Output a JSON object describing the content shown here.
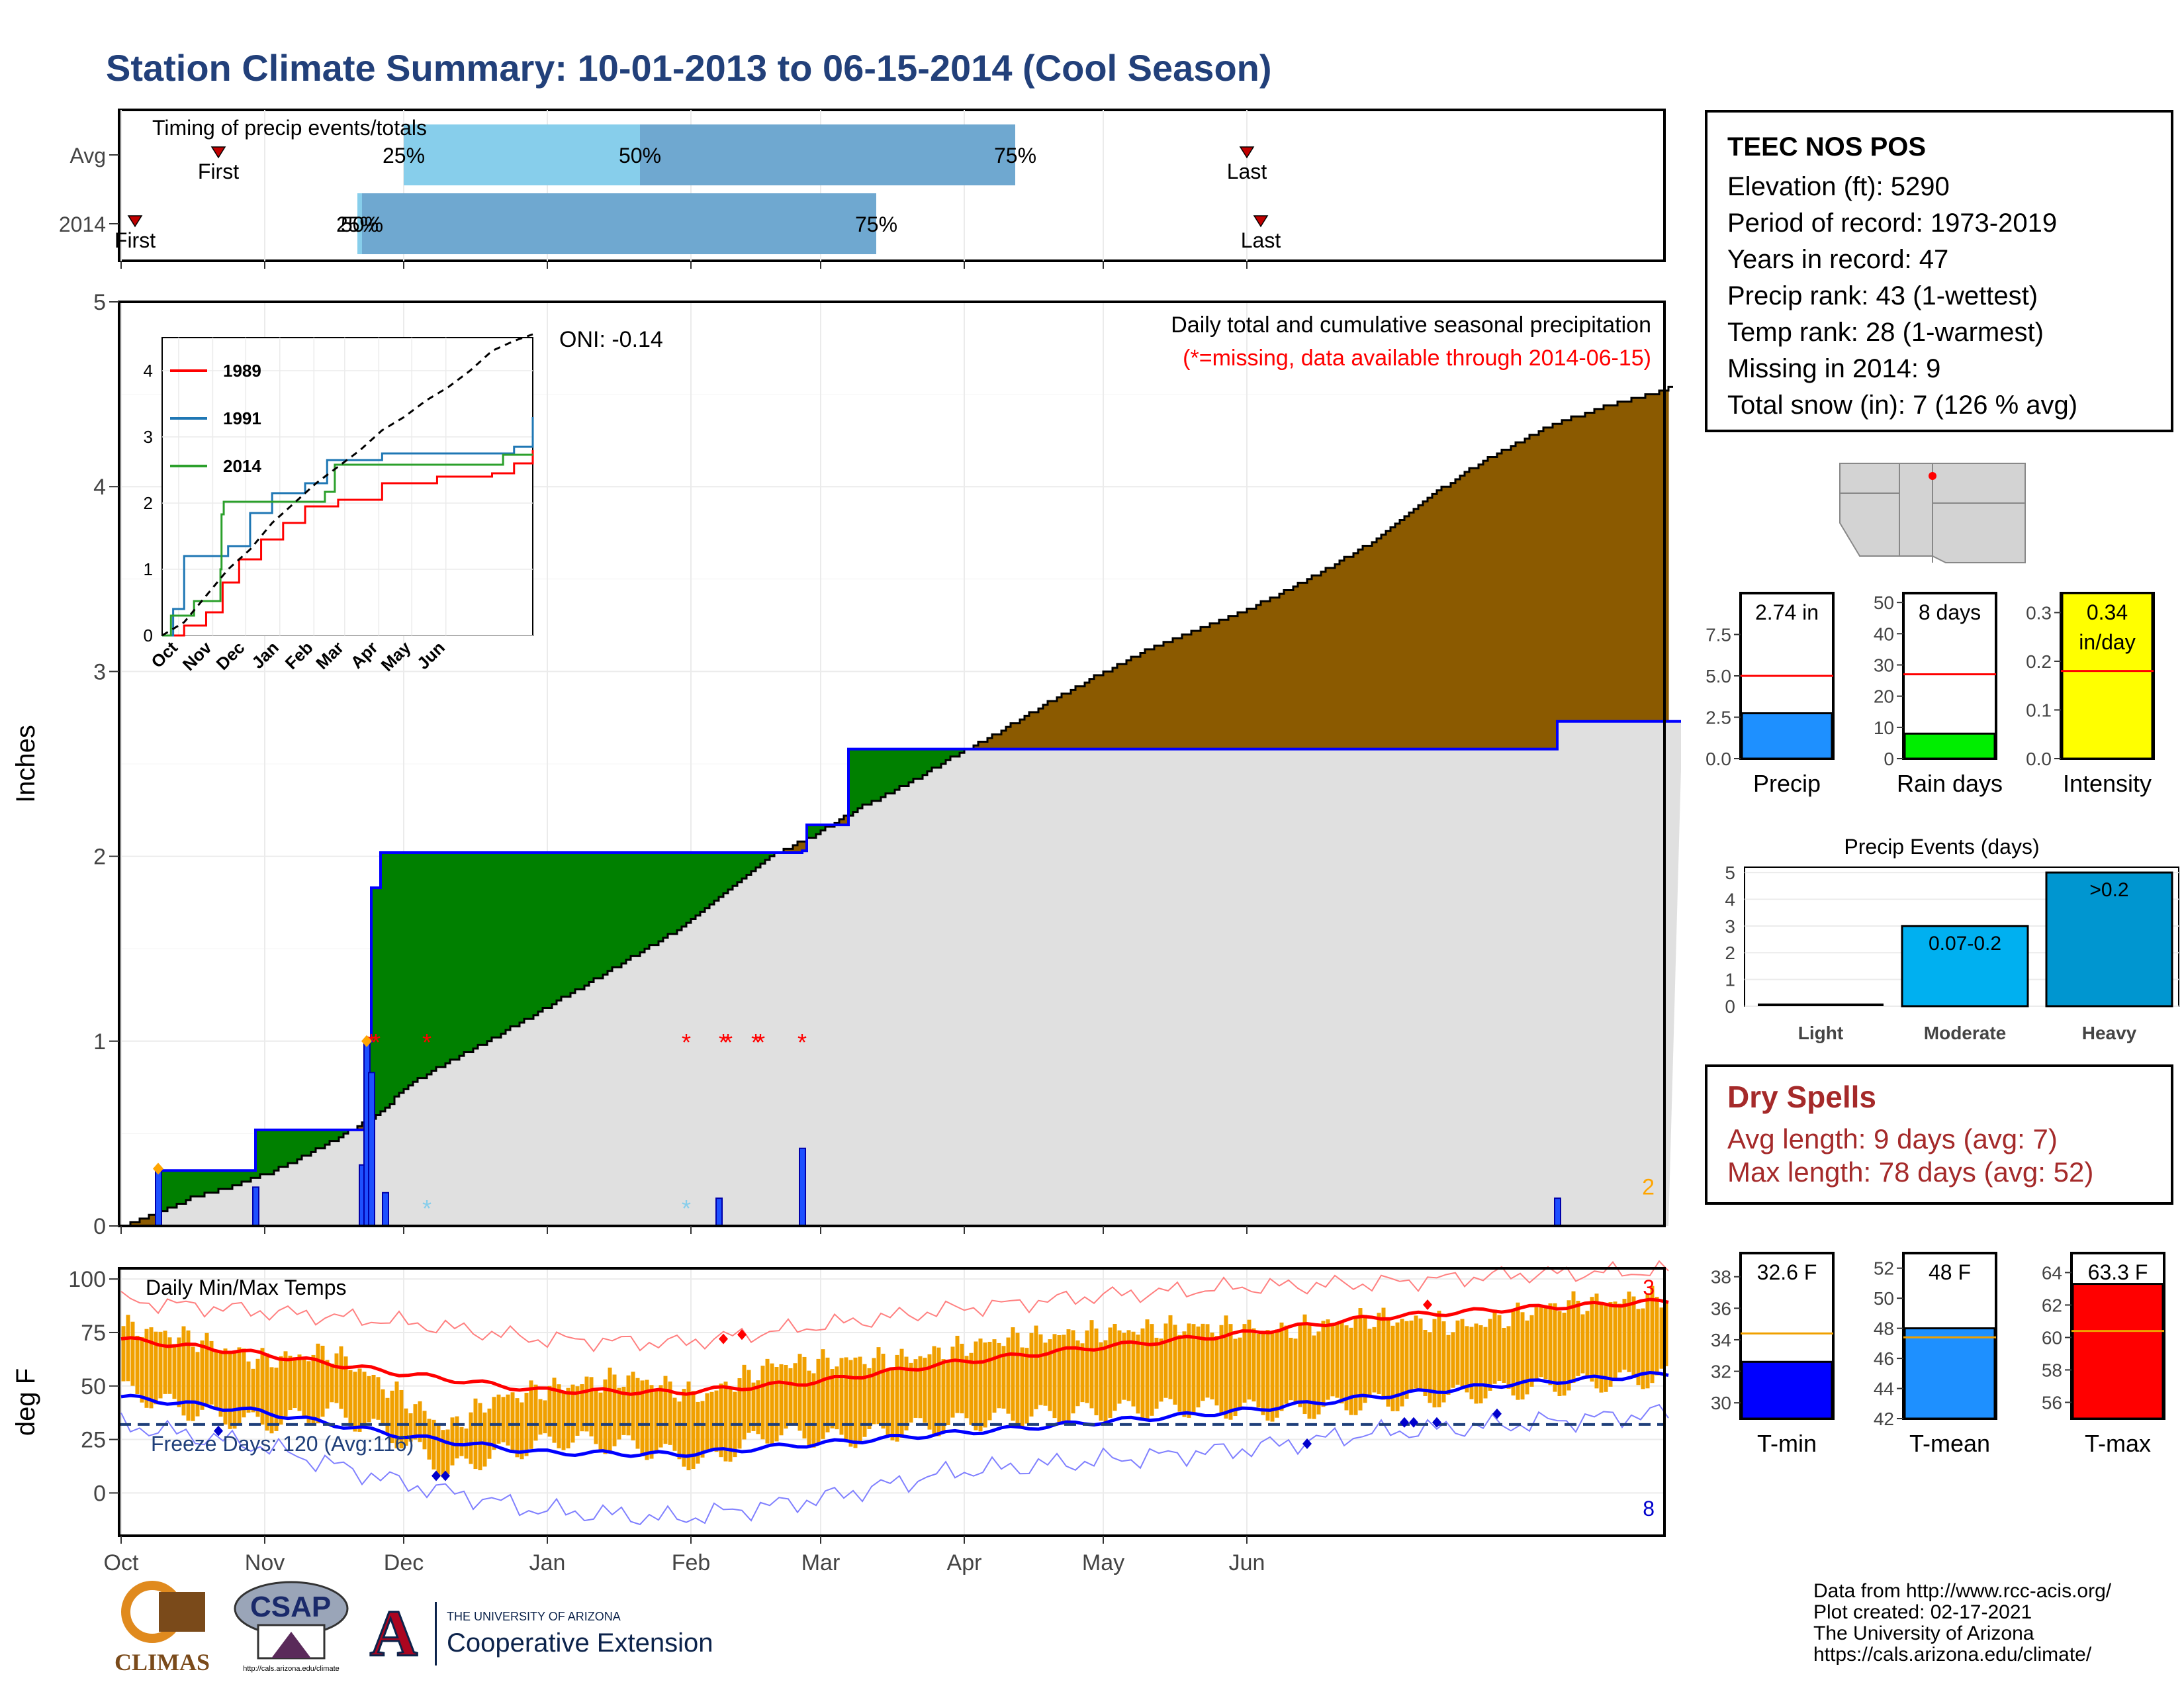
{
  "title": "Station Climate Summary: 10-01-2013 to 06-15-2014 (Cool Season)",
  "station": {
    "name": "TEEC NOS POS",
    "lines": [
      "Elevation (ft): 5290",
      "Period of record: 1973-2019",
      "Years in record: 47",
      "Precip rank: 43 (1-wettest)",
      "Temp rank: 28 (1-warmest)",
      "Missing in 2014: 9",
      "Total snow (in): 7 (126 % avg)"
    ]
  },
  "dry_spells": {
    "title": "Dry Spells",
    "avg_line": "Avg length: 9 days (avg: 7)",
    "max_line": "Max length: 78 days (avg: 52)"
  },
  "footer": {
    "lines": [
      "Data from http://www.rcc-acis.org/",
      "Plot created: 02-17-2021",
      "The University of Arizona",
      "https://cals.arizona.edu/climate/"
    ],
    "logos": {
      "climas": "CLIMAS",
      "csap": "CSAP",
      "csap_url": "http://cals.arizona.edu/climate",
      "ua_top": "THE UNIVERSITY OF ARIZONA",
      "ua_bottom": "Cooperative Extension",
      "ua_letter": "A"
    }
  },
  "colors": {
    "title": "#22407a",
    "brown": "#8b5a00",
    "green": "#008000",
    "gray_fill": "#e0e0e0",
    "blue_line": "#0000ff",
    "bar_light": "#87ceeb",
    "bar_mid": "#6fa8d0",
    "tmax": "#ff0000",
    "tmin": "#0000ff",
    "orange": "#f0a000",
    "yellow": "#ffff00",
    "rain_green": "#00ee00"
  },
  "chart_data": [
    {
      "id": "timing",
      "type": "bar",
      "title": "Timing of precip events/totals",
      "rows": [
        "Avg",
        "2014"
      ],
      "quantile_labels": [
        "25%",
        "50%",
        "75%"
      ],
      "first_label": "First",
      "last_label": "Last",
      "avg": {
        "first": "2013-10-22",
        "q25": "2013-12-01",
        "q50": "2014-01-21",
        "q75": "2014-04-12",
        "last": "2014-06-01"
      },
      "y2014": {
        "first": "2013-10-04",
        "q25": "2013-11-21",
        "q50": "2013-11-22",
        "q75": "2014-03-13",
        "last": "2014-06-04"
      }
    },
    {
      "id": "precip",
      "type": "area",
      "title": "Daily total and cumulative seasonal precipitation",
      "subtitle": "(*=missing, data available through 2014-06-15)",
      "oni": "ONI: -0.14",
      "ylabel": "Inches",
      "ylim": [
        0,
        5
      ],
      "yticks": [
        "0",
        "1",
        "2",
        "3",
        "4",
        "5"
      ],
      "xticks": [
        "Oct",
        "Nov",
        "Dec",
        "Jan",
        "Feb",
        "Mar",
        "Apr",
        "May",
        "Jun"
      ],
      "corner_count": "2",
      "avg_cumulative": [
        [
          0,
          0
        ],
        [
          7,
          0.06
        ],
        [
          15,
          0.15
        ],
        [
          25,
          0.22
        ],
        [
          35,
          0.32
        ],
        [
          45,
          0.45
        ],
        [
          55,
          0.6
        ],
        [
          62,
          0.76
        ],
        [
          70,
          0.88
        ],
        [
          80,
          1.01
        ],
        [
          90,
          1.16
        ],
        [
          100,
          1.3
        ],
        [
          110,
          1.45
        ],
        [
          120,
          1.6
        ],
        [
          130,
          1.8
        ],
        [
          140,
          2.0
        ],
        [
          150,
          2.12
        ],
        [
          160,
          2.27
        ],
        [
          170,
          2.4
        ],
        [
          180,
          2.55
        ],
        [
          190,
          2.68
        ],
        [
          200,
          2.83
        ],
        [
          210,
          2.97
        ],
        [
          220,
          3.1
        ],
        [
          230,
          3.2
        ],
        [
          240,
          3.3
        ],
        [
          250,
          3.42
        ],
        [
          260,
          3.55
        ],
        [
          270,
          3.7
        ],
        [
          280,
          3.9
        ],
        [
          290,
          4.08
        ],
        [
          300,
          4.22
        ],
        [
          310,
          4.35
        ],
        [
          320,
          4.43
        ],
        [
          330,
          4.5
        ],
        [
          337,
          4.56
        ]
      ],
      "obs_cumulative": [
        [
          0,
          0
        ],
        [
          7,
          0
        ],
        [
          8,
          0.3
        ],
        [
          28,
          0.3
        ],
        [
          29,
          0.52
        ],
        [
          52,
          0.52
        ],
        [
          53,
          1.0
        ],
        [
          54,
          1.83
        ],
        [
          56,
          2.02
        ],
        [
          129,
          2.02
        ],
        [
          147,
          2.03
        ],
        [
          148,
          2.17
        ],
        [
          156,
          2.17
        ],
        [
          157,
          2.58
        ],
        [
          309,
          2.58
        ],
        [
          310,
          2.73
        ],
        [
          337,
          2.73
        ]
      ],
      "daily_bars": [
        [
          8,
          0.3
        ],
        [
          29,
          0.21
        ],
        [
          52,
          0.33
        ],
        [
          53,
          1.0
        ],
        [
          54,
          0.83
        ],
        [
          57,
          0.18
        ],
        [
          129,
          0.15
        ],
        [
          147,
          0.42
        ],
        [
          310,
          0.15
        ]
      ],
      "missing_marks": [
        54,
        55,
        66,
        122,
        130,
        131,
        137,
        138,
        147
      ],
      "snow_marks": [
        66,
        122
      ],
      "inset": {
        "ylim": [
          0,
          4.5
        ],
        "yticks": [
          "0",
          "1",
          "2",
          "3",
          "4"
        ],
        "xticks": [
          "Oct",
          "Nov",
          "Dec",
          "Jan",
          "Feb",
          "Mar",
          "Apr",
          "May",
          "Jun"
        ],
        "series": [
          {
            "name": "1989",
            "color": "#ff0000",
            "values": [
              [
                0,
                0
              ],
              [
                20,
                0.15
              ],
              [
                40,
                0.35
              ],
              [
                55,
                0.8
              ],
              [
                70,
                1.15
              ],
              [
                90,
                1.45
              ],
              [
                110,
                1.7
              ],
              [
                130,
                1.95
              ],
              [
                160,
                2.05
              ],
              [
                200,
                2.3
              ],
              [
                250,
                2.4
              ],
              [
                300,
                2.45
              ],
              [
                320,
                2.6
              ],
              [
                337,
                2.8
              ]
            ]
          },
          {
            "name": "1991",
            "color": "#1f77b4",
            "values": [
              [
                0,
                0
              ],
              [
                10,
                0.4
              ],
              [
                20,
                1.2
              ],
              [
                40,
                1.2
              ],
              [
                60,
                1.35
              ],
              [
                80,
                1.85
              ],
              [
                100,
                2.15
              ],
              [
                130,
                2.3
              ],
              [
                150,
                2.65
              ],
              [
                200,
                2.75
              ],
              [
                260,
                2.75
              ],
              [
                300,
                2.75
              ],
              [
                320,
                2.85
              ],
              [
                337,
                3.3
              ]
            ]
          },
          {
            "name": "2014",
            "color": "#2ca02c",
            "values": [
              [
                0,
                0
              ],
              [
                8,
                0.3
              ],
              [
                28,
                0.3
              ],
              [
                29,
                0.52
              ],
              [
                52,
                0.52
              ],
              [
                53,
                1.0
              ],
              [
                54,
                1.83
              ],
              [
                56,
                2.02
              ],
              [
                129,
                2.02
              ],
              [
                148,
                2.17
              ],
              [
                157,
                2.58
              ],
              [
                310,
                2.73
              ],
              [
                337,
                2.73
              ]
            ]
          },
          {
            "name": "avg",
            "color": "#000000",
            "values": [
              [
                0,
                0
              ],
              [
                20,
                0.2
              ],
              [
                40,
                0.6
              ],
              [
                60,
                1.0
              ],
              [
                80,
                1.3
              ],
              [
                100,
                1.7
              ],
              [
                120,
                2.0
              ],
              [
                140,
                2.3
              ],
              [
                160,
                2.55
              ],
              [
                180,
                2.8
              ],
              [
                200,
                3.1
              ],
              [
                220,
                3.3
              ],
              [
                240,
                3.55
              ],
              [
                260,
                3.75
              ],
              [
                280,
                4.0
              ],
              [
                300,
                4.3
              ],
              [
                320,
                4.45
              ],
              [
                337,
                4.55
              ]
            ]
          }
        ]
      }
    },
    {
      "id": "temps",
      "type": "line",
      "title": "Daily Min/Max Temps",
      "ylabel": "deg F",
      "ylim": [
        -20,
        105
      ],
      "yticks": [
        "0",
        "25",
        "50",
        "75",
        "100"
      ],
      "xticks": [
        "Oct",
        "Nov",
        "Dec",
        "Jan",
        "Feb",
        "Mar",
        "Apr",
        "May",
        "Jun"
      ],
      "freeze_text": "Freeze Days: 120 (Avg:116)",
      "freeze_line": 32,
      "max_record_count": "3",
      "min_record_count": "8",
      "avg_max": [
        [
          0,
          72
        ],
        [
          30,
          65
        ],
        [
          60,
          56
        ],
        [
          90,
          48
        ],
        [
          120,
          47
        ],
        [
          150,
          52
        ],
        [
          180,
          61
        ],
        [
          210,
          68
        ],
        [
          240,
          74
        ],
        [
          270,
          82
        ],
        [
          300,
          86
        ],
        [
          337,
          90
        ]
      ],
      "avg_min": [
        [
          0,
          45
        ],
        [
          30,
          38
        ],
        [
          60,
          27
        ],
        [
          90,
          19
        ],
        [
          120,
          18
        ],
        [
          150,
          23
        ],
        [
          180,
          28
        ],
        [
          210,
          33
        ],
        [
          240,
          38
        ],
        [
          270,
          45
        ],
        [
          300,
          51
        ],
        [
          337,
          56
        ]
      ],
      "obs_max": [
        [
          0,
          78
        ],
        [
          15,
          72
        ],
        [
          30,
          62
        ],
        [
          45,
          66
        ],
        [
          60,
          45
        ],
        [
          70,
          30
        ],
        [
          80,
          44
        ],
        [
          95,
          50
        ],
        [
          110,
          54
        ],
        [
          125,
          45
        ],
        [
          140,
          60
        ],
        [
          155,
          62
        ],
        [
          170,
          63
        ],
        [
          190,
          72
        ],
        [
          210,
          75
        ],
        [
          230,
          78
        ],
        [
          250,
          76
        ],
        [
          270,
          82
        ],
        [
          290,
          78
        ],
        [
          310,
          88
        ],
        [
          337,
          92
        ]
      ],
      "obs_min": [
        [
          0,
          48
        ],
        [
          15,
          38
        ],
        [
          30,
          32
        ],
        [
          45,
          38
        ],
        [
          60,
          25
        ],
        [
          70,
          10
        ],
        [
          80,
          18
        ],
        [
          95,
          25
        ],
        [
          110,
          22
        ],
        [
          125,
          14
        ],
        [
          140,
          28
        ],
        [
          155,
          25
        ],
        [
          170,
          30
        ],
        [
          190,
          35
        ],
        [
          210,
          38
        ],
        [
          230,
          40
        ],
        [
          250,
          38
        ],
        [
          270,
          42
        ],
        [
          290,
          46
        ],
        [
          310,
          50
        ],
        [
          337,
          55
        ]
      ],
      "record_max": [
        [
          0,
          90
        ],
        [
          30,
          85
        ],
        [
          60,
          80
        ],
        [
          90,
          72
        ],
        [
          120,
          70
        ],
        [
          150,
          78
        ],
        [
          180,
          86
        ],
        [
          210,
          92
        ],
        [
          240,
          96
        ],
        [
          270,
          98
        ],
        [
          300,
          102
        ],
        [
          337,
          104
        ]
      ],
      "record_min": [
        [
          0,
          32
        ],
        [
          30,
          22
        ],
        [
          60,
          5
        ],
        [
          90,
          -8
        ],
        [
          120,
          -12
        ],
        [
          150,
          -3
        ],
        [
          180,
          10
        ],
        [
          210,
          15
        ],
        [
          240,
          20
        ],
        [
          270,
          28
        ],
        [
          300,
          32
        ],
        [
          337,
          38
        ]
      ],
      "record_max_marks": [
        [
          130,
          72
        ],
        [
          134,
          74
        ],
        [
          282,
          88
        ]
      ],
      "record_min_marks": [
        [
          21,
          29
        ],
        [
          68,
          8
        ],
        [
          70,
          8
        ],
        [
          256,
          23
        ],
        [
          277,
          33
        ],
        [
          279,
          33
        ],
        [
          284,
          33
        ],
        [
          297,
          37
        ]
      ],
      "snow_mark_day": 8
    },
    {
      "id": "precip_gauge",
      "type": "bar",
      "xlabel": "Precip",
      "value": 2.74,
      "avg": 5.0,
      "label": "2.74 in",
      "ylim": [
        0,
        10
      ],
      "yticks": [
        "0.0",
        "2.5",
        "5.0",
        "7.5"
      ]
    },
    {
      "id": "raindays_gauge",
      "type": "bar",
      "xlabel": "Rain days",
      "value": 8,
      "avg": 27,
      "label": "8 days",
      "ylim": [
        0,
        53
      ],
      "yticks": [
        "0",
        "10",
        "20",
        "30",
        "40",
        "50"
      ]
    },
    {
      "id": "intensity_gauge",
      "type": "bar",
      "xlabel": "Intensity",
      "value": 0.34,
      "avg": 0.18,
      "label": "0.34",
      "label2": "in/day",
      "ylim": [
        0,
        0.34
      ],
      "yticks": [
        "0.0",
        "0.1",
        "0.2",
        "0.3"
      ]
    },
    {
      "id": "events",
      "type": "bar",
      "title": "Precip Events (days)",
      "categories": [
        "Light",
        "Moderate",
        "Heavy"
      ],
      "values": [
        0,
        3,
        5
      ],
      "bar_labels": [
        "",
        "0.07-0.2",
        ">0.2"
      ],
      "ylim": [
        0,
        5.2
      ],
      "yticks": [
        "0",
        "1",
        "2",
        "3",
        "4",
        "5"
      ]
    },
    {
      "id": "tmin_gauge",
      "type": "bar",
      "xlabel": "T-min",
      "value": 32.6,
      "avg": 34.4,
      "label": "32.6 F",
      "ylim": [
        29,
        39.5
      ],
      "yticks": [
        "30",
        "32",
        "34",
        "36",
        "38"
      ]
    },
    {
      "id": "tmean_gauge",
      "type": "bar",
      "xlabel": "T-mean",
      "value": 48,
      "avg": 47.4,
      "label": "48 F",
      "ylim": [
        42,
        53
      ],
      "yticks": [
        "42",
        "44",
        "46",
        "48",
        "50",
        "52"
      ]
    },
    {
      "id": "tmax_gauge",
      "type": "bar",
      "xlabel": "T-max",
      "value": 63.3,
      "avg": 60.4,
      "label": "63.3 F",
      "ylim": [
        55,
        65.2
      ],
      "yticks": [
        "56",
        "58",
        "60",
        "62",
        "64"
      ]
    }
  ]
}
